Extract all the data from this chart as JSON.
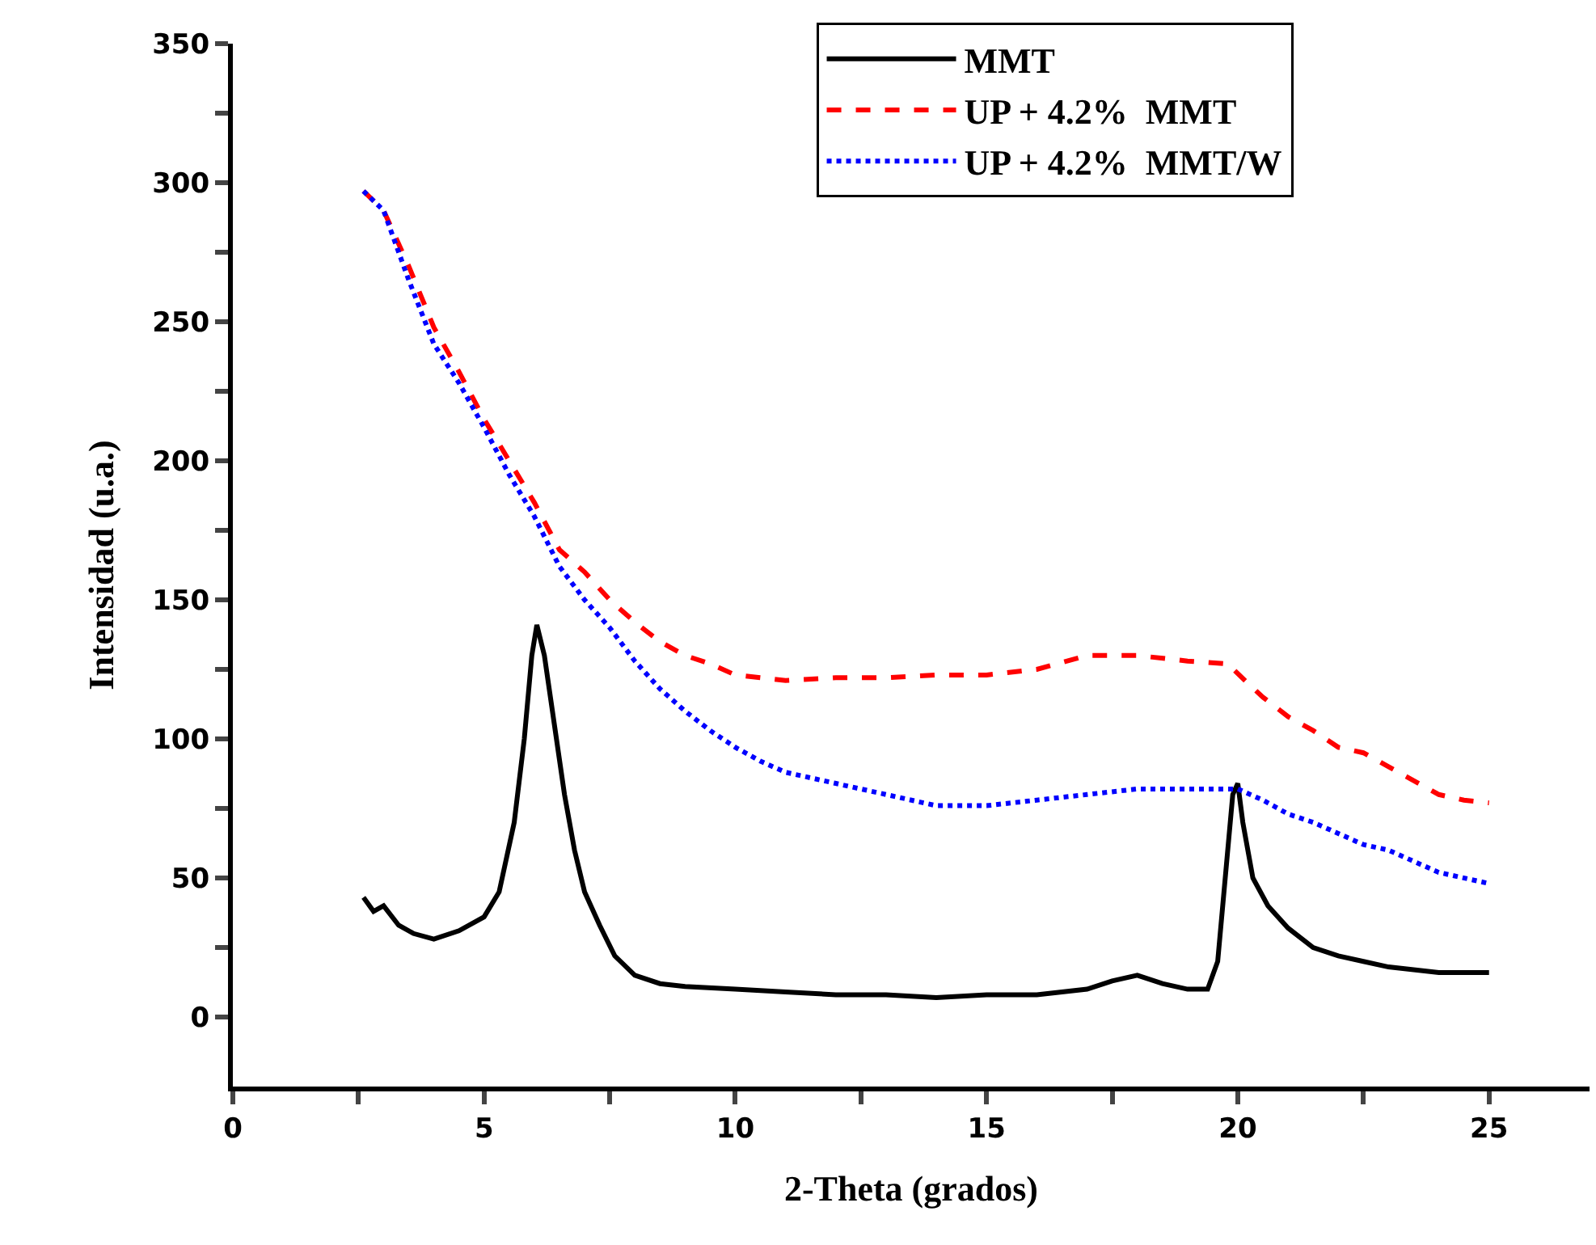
{
  "chart_data": {
    "type": "line",
    "xlabel": "2-Theta (grados)",
    "ylabel": "Intensidad (u.a.)",
    "xlim": [
      0,
      27
    ],
    "ylim": [
      -25,
      350
    ],
    "xticks": [
      0,
      {
        "value": 2.5,
        "label": null
      },
      5,
      {
        "value": 7.5,
        "label": null
      },
      10,
      {
        "value": 12.5,
        "label": null
      },
      15,
      {
        "value": 17.5,
        "label": null
      },
      20,
      {
        "value": 22.5,
        "label": null
      },
      25
    ],
    "yticks": [
      0,
      {
        "value": 25,
        "label": null
      },
      50,
      {
        "value": 75,
        "label": null
      },
      100,
      {
        "value": 125,
        "label": null
      },
      150,
      {
        "value": 175,
        "label": null
      },
      200,
      {
        "value": 225,
        "label": null
      },
      250,
      {
        "value": 275,
        "label": null
      },
      300,
      {
        "value": 325,
        "label": null
      },
      350
    ],
    "legend": "top right",
    "marker": "none",
    "series": [
      {
        "name": "MMT",
        "color": "#000000",
        "line_style": "solid",
        "x": [
          2.6,
          2.8,
          3.0,
          3.3,
          3.6,
          4.0,
          4.5,
          5.0,
          5.3,
          5.6,
          5.8,
          5.95,
          6.05,
          6.2,
          6.4,
          6.6,
          6.8,
          7.0,
          7.3,
          7.6,
          8.0,
          8.5,
          9,
          10,
          11,
          12,
          13,
          14,
          15,
          16,
          17,
          17.5,
          18,
          18.5,
          19,
          19.4,
          19.6,
          19.75,
          19.9,
          20.0,
          20.1,
          20.3,
          20.6,
          21,
          21.5,
          22,
          22.5,
          23,
          24,
          25
        ],
        "values": [
          43,
          38,
          40,
          33,
          30,
          28,
          31,
          36,
          45,
          70,
          100,
          130,
          141,
          130,
          105,
          80,
          60,
          45,
          33,
          22,
          15,
          12,
          11,
          10,
          9,
          8,
          8,
          7,
          8,
          8,
          10,
          13,
          15,
          12,
          10,
          10,
          20,
          50,
          80,
          84,
          70,
          50,
          40,
          32,
          25,
          22,
          20,
          18,
          16,
          16
        ]
      },
      {
        "name": "UP + 4.2%  MMT",
        "color": "#ff0000",
        "line_style": "dashed",
        "x": [
          2.6,
          3.0,
          3.5,
          4.0,
          4.5,
          5.0,
          5.5,
          6.0,
          6.5,
          7.0,
          7.5,
          8.0,
          8.5,
          9,
          9.5,
          10,
          11,
          12,
          13,
          14,
          15,
          16,
          17,
          18,
          19,
          19.8,
          20.2,
          20.5,
          21,
          21.5,
          22,
          22.5,
          23,
          23.5,
          24,
          24.5,
          25
        ],
        "values": [
          297,
          290,
          270,
          248,
          232,
          215,
          200,
          185,
          168,
          160,
          150,
          142,
          135,
          130,
          127,
          123,
          121,
          122,
          122,
          123,
          123,
          125,
          130,
          130,
          128,
          127,
          120,
          115,
          108,
          103,
          97,
          95,
          90,
          85,
          80,
          78,
          77
        ]
      },
      {
        "name": "UP + 4.2%  MMT/W",
        "color": "#0000ff",
        "line_style": "dotted",
        "x": [
          2.6,
          3,
          3.5,
          4,
          4.5,
          5,
          5.5,
          6,
          6.5,
          7,
          7.5,
          8,
          8.5,
          9,
          9.5,
          10,
          10.5,
          11,
          12,
          13,
          14,
          15,
          16,
          17,
          18,
          19,
          20,
          20.5,
          21,
          21.5,
          22,
          22.5,
          23,
          23.5,
          24,
          25
        ],
        "values": [
          297,
          290,
          265,
          242,
          228,
          212,
          195,
          180,
          162,
          150,
          140,
          128,
          118,
          110,
          103,
          97,
          92,
          88,
          84,
          80,
          76,
          76,
          78,
          80,
          82,
          82,
          82,
          78,
          73,
          70,
          66,
          62,
          60,
          56,
          52,
          48
        ]
      }
    ]
  }
}
